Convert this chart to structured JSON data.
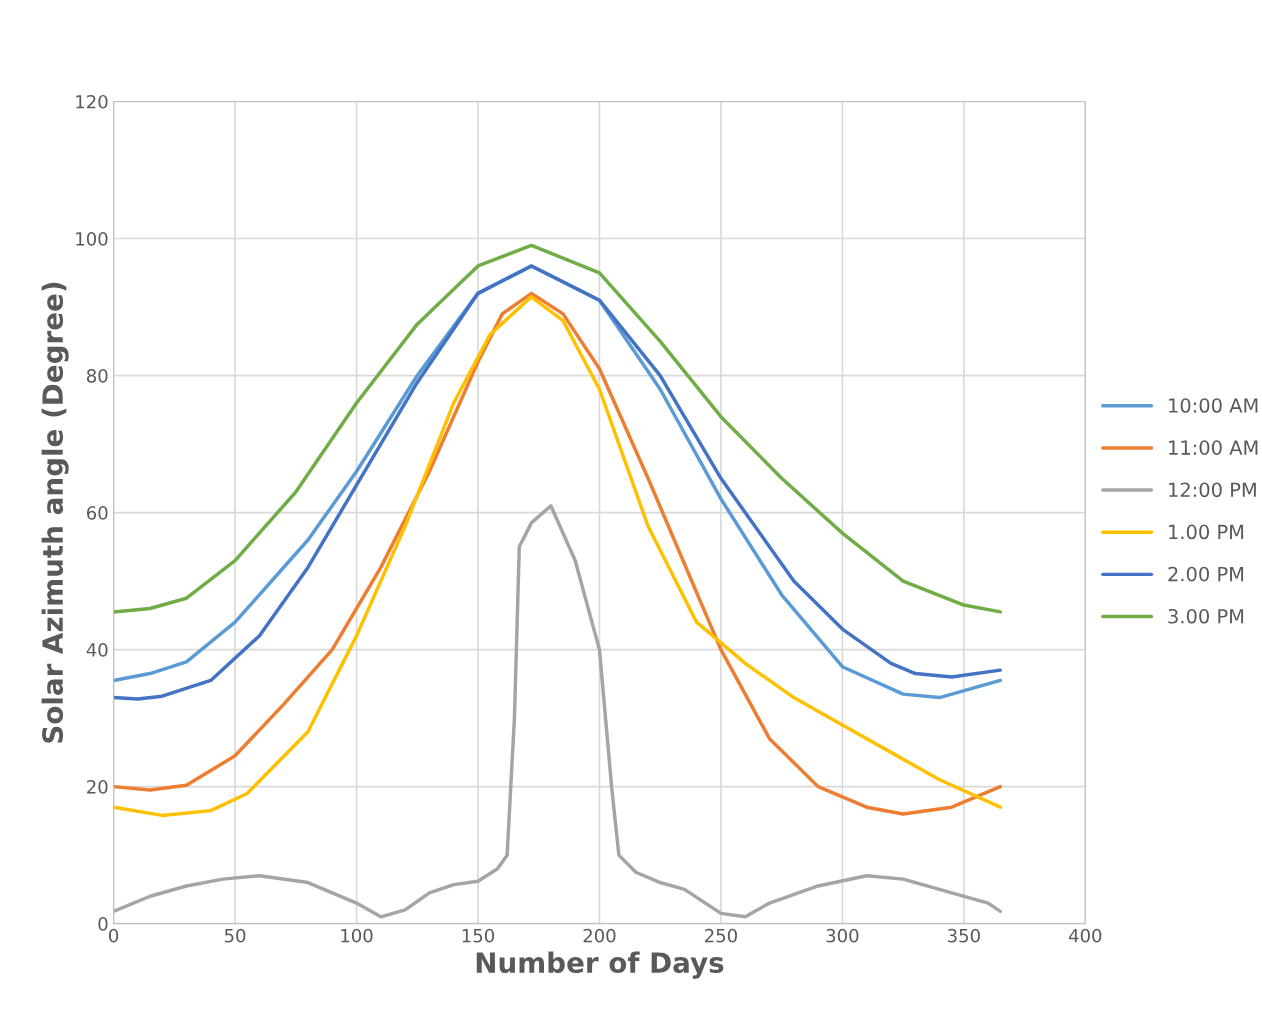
{
  "chart_data": {
    "type": "line",
    "xlabel": "Number of Days",
    "ylabel": "Solar Azimuth angle (Degree)",
    "xlim": [
      0,
      400
    ],
    "xticks": [
      0,
      50,
      100,
      150,
      200,
      250,
      300,
      350,
      400
    ],
    "ylim": [
      0,
      120
    ],
    "yticks": [
      0,
      20,
      40,
      60,
      80,
      100,
      120
    ],
    "grid": true,
    "legend": "right",
    "marker": "none",
    "line_style": "solid",
    "series": [
      {
        "name": "10:00 AM",
        "color": "#5b9bd5",
        "x": [
          0,
          15,
          30,
          50,
          80,
          100,
          125,
          150,
          172,
          200,
          225,
          250,
          275,
          300,
          325,
          340,
          365
        ],
        "values": [
          35.5,
          36.5,
          38.2,
          44,
          56,
          66,
          80,
          92,
          96,
          91,
          78,
          62,
          48,
          37.5,
          33.5,
          33,
          35.5
        ]
      },
      {
        "name": "11:00 AM",
        "color": "#ed7d31",
        "x": [
          0,
          15,
          30,
          50,
          70,
          90,
          110,
          130,
          150,
          160,
          172,
          185,
          200,
          220,
          250,
          270,
          290,
          310,
          325,
          345,
          365
        ],
        "values": [
          20,
          19.5,
          20.2,
          24.5,
          32,
          40,
          52,
          66,
          82,
          89,
          92,
          89,
          81,
          65,
          40,
          27,
          20,
          17,
          16,
          17,
          20
        ]
      },
      {
        "name": "12:00 PM",
        "color": "#a5a5a5",
        "x": [
          0,
          15,
          30,
          45,
          60,
          80,
          100,
          110,
          120,
          130,
          140,
          150,
          158,
          162,
          165,
          167,
          172,
          180,
          190,
          200,
          205,
          208,
          215,
          225,
          235,
          250,
          260,
          270,
          290,
          310,
          325,
          345,
          360,
          365
        ],
        "values": [
          1.8,
          4,
          5.5,
          6.5,
          7,
          6,
          3,
          1,
          2,
          4.5,
          5.7,
          6.2,
          8,
          10,
          30,
          55,
          58.5,
          61,
          53,
          40,
          20,
          10,
          7.5,
          6,
          5,
          1.5,
          1,
          3,
          5.5,
          7,
          6.5,
          4.5,
          3,
          1.8
        ]
      },
      {
        "name": "1.00 PM",
        "color": "#ffc000",
        "x": [
          0,
          20,
          40,
          55,
          80,
          100,
          120,
          140,
          155,
          172,
          185,
          200,
          220,
          240,
          260,
          280,
          300,
          320,
          340,
          365
        ],
        "values": [
          17,
          15.8,
          16.5,
          19,
          28,
          42,
          58,
          76,
          86,
          91.5,
          88,
          78,
          58,
          44,
          38,
          33,
          29,
          25,
          21,
          17
        ]
      },
      {
        "name": "2.00 PM",
        "color": "#4472c4",
        "x": [
          0,
          10,
          20,
          40,
          60,
          80,
          100,
          125,
          150,
          172,
          200,
          225,
          250,
          280,
          300,
          320,
          330,
          345,
          365
        ],
        "values": [
          33,
          32.8,
          33.2,
          35.5,
          42,
          52,
          64,
          79,
          92,
          96,
          91,
          80,
          65,
          50,
          43,
          38,
          36.5,
          36,
          37
        ]
      },
      {
        "name": "3.00 PM",
        "color": "#70ad47",
        "x": [
          0,
          15,
          30,
          50,
          75,
          100,
          125,
          150,
          172,
          200,
          225,
          250,
          275,
          300,
          325,
          350,
          365
        ],
        "values": [
          45.5,
          46,
          47.5,
          53,
          63,
          76,
          87.5,
          96,
          99,
          95,
          85,
          74,
          65,
          57,
          50,
          46.5,
          45.5
        ]
      }
    ]
  }
}
